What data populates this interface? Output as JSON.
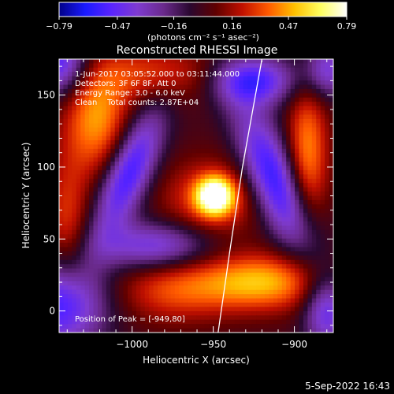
{
  "chart_data": {
    "type": "heatmap",
    "title": "Reconstructed RHESSI Image",
    "xlabel": "Heliocentric X (arcsec)",
    "ylabel": "Heliocentric Y (arcsec)",
    "xlim": [
      -1045,
      -876
    ],
    "ylim": [
      -15,
      175
    ],
    "x_ticks": [
      -1000,
      -950,
      -900
    ],
    "x_tick_labels": [
      "−1000",
      "−950",
      "−900"
    ],
    "y_ticks": [
      0,
      50,
      100,
      150
    ],
    "y_tick_labels": [
      "0",
      "50",
      "100",
      "150"
    ],
    "colorbar": {
      "label": "(photons cm⁻² s⁻¹ asec⁻²)",
      "range": [
        -0.79,
        0.79
      ],
      "ticks": [
        -0.79,
        -0.47,
        -0.16,
        0.16,
        0.47,
        0.79
      ],
      "tick_labels": [
        "−0.79",
        "−0.47",
        "−0.16",
        "0.16",
        "0.47",
        "0.79"
      ],
      "colormap": [
        "#000088",
        "#1a1aff",
        "#5a24ff",
        "#7f3bd0",
        "#6a2a8c",
        "#2a0830",
        "#600000",
        "#c01000",
        "#ff5a00",
        "#ffc000",
        "#ffff60",
        "#ffffff"
      ]
    },
    "annotations": [
      "1-Jun-2017 03:05:52.000 to 03:11:44.000",
      "Detectors: 3F 6F 8F, Att 0",
      "Energy Range: 3.0 - 6.0 keV",
      "Clean    Total counts: 2.87E+04"
    ],
    "peak_label": "Position of Peak = [-949,80]",
    "peak": {
      "x": -949,
      "y": 80,
      "value": 0.79
    },
    "limb_curve": [
      [
        -947,
        -15
      ],
      [
        -940,
        40
      ],
      [
        -932,
        100
      ],
      [
        -920,
        175
      ]
    ],
    "sources": [
      {
        "x": -949,
        "y": 80,
        "value": 0.79,
        "sx": 8,
        "sy": 9,
        "theta": 0
      },
      {
        "x": -952,
        "y": 77,
        "value": 0.3,
        "sx": 22,
        "sy": 20,
        "theta": 0
      },
      {
        "x": -1022,
        "y": 135,
        "value": 0.45,
        "sx": 14,
        "sy": 28,
        "theta": 0
      },
      {
        "x": -892,
        "y": 110,
        "value": 0.42,
        "sx": 9,
        "sy": 36,
        "theta": 0
      },
      {
        "x": -920,
        "y": 20,
        "value": 0.5,
        "sx": 28,
        "sy": 14,
        "theta": 0
      },
      {
        "x": -975,
        "y": 15,
        "value": 0.3,
        "sx": 25,
        "sy": 16,
        "theta": 0
      },
      {
        "x": -1040,
        "y": 60,
        "value": 0.28,
        "sx": 10,
        "sy": 35,
        "theta": 0
      },
      {
        "x": -985,
        "y": 165,
        "value": 0.28,
        "sx": 28,
        "sy": 14,
        "theta": 0
      },
      {
        "x": -1002,
        "y": 96,
        "value": -0.6,
        "sx": 10,
        "sy": 32,
        "theta": 0.35
      },
      {
        "x": -912,
        "y": 90,
        "value": -0.62,
        "sx": 11,
        "sy": 38,
        "theta": -0.35
      },
      {
        "x": -925,
        "y": 160,
        "value": -0.55,
        "sx": 18,
        "sy": 12,
        "theta": 0
      },
      {
        "x": -985,
        "y": 45,
        "value": -0.45,
        "sx": 25,
        "sy": 12,
        "theta": 0
      },
      {
        "x": -1045,
        "y": 5,
        "value": -0.6,
        "sx": 20,
        "sy": 22,
        "theta": 0
      },
      {
        "x": -1045,
        "y": 172,
        "value": -0.55,
        "sx": 14,
        "sy": 16,
        "theta": 0
      },
      {
        "x": -880,
        "y": 0,
        "value": -0.45,
        "sx": 10,
        "sy": 18,
        "theta": 0
      },
      {
        "x": -880,
        "y": 168,
        "value": -0.4,
        "sx": 10,
        "sy": 14,
        "theta": 0
      }
    ]
  },
  "footer": {
    "date": "5-Sep-2022 16:43"
  }
}
